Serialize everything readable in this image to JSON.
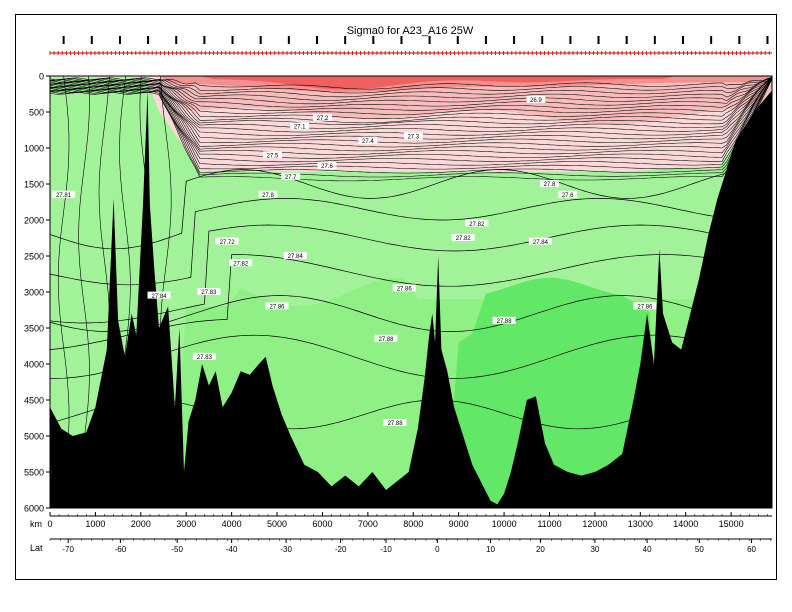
{
  "chart_data": {
    "type": "heatmap",
    "title": "Sigma0 for A23_A16 25W",
    "xlabel": "km",
    "ylabel": "",
    "x_range": [
      0,
      15900
    ],
    "y_range": [
      0,
      6000
    ],
    "y_inverted": true,
    "x_ticks": [
      0,
      1000,
      2000,
      3000,
      4000,
      5000,
      6000,
      7000,
      8000,
      9000,
      10000,
      11000,
      12000,
      13000,
      14000,
      15000
    ],
    "y_ticks": [
      0,
      500,
      1000,
      1500,
      2000,
      2500,
      3000,
      3500,
      4000,
      4500,
      5000,
      5500,
      6000
    ],
    "lat_label": "Lat",
    "lat_ticks": [
      {
        "km": 400,
        "label": "-70"
      },
      {
        "km": 1550,
        "label": "-60"
      },
      {
        "km": 2800,
        "label": "-50"
      },
      {
        "km": 4000,
        "label": "-40"
      },
      {
        "km": 5200,
        "label": "-30"
      },
      {
        "km": 6400,
        "label": "-20"
      },
      {
        "km": 7400,
        "label": "-10"
      },
      {
        "km": 8530,
        "label": "0"
      },
      {
        "km": 9700,
        "label": "10"
      },
      {
        "km": 10800,
        "label": "20"
      },
      {
        "km": 12000,
        "label": "30"
      },
      {
        "km": 13150,
        "label": "40"
      },
      {
        "km": 14300,
        "label": "50"
      },
      {
        "km": 15450,
        "label": "60"
      }
    ],
    "bottom_topography_m": [
      [
        0,
        4600
      ],
      [
        250,
        4900
      ],
      [
        500,
        5000
      ],
      [
        800,
        4950
      ],
      [
        1000,
        4600
      ],
      [
        1250,
        3800
      ],
      [
        1400,
        1700
      ],
      [
        1500,
        3400
      ],
      [
        1650,
        3900
      ],
      [
        1800,
        3300
      ],
      [
        1900,
        3600
      ],
      [
        2050,
        1750
      ],
      [
        2150,
        200
      ],
      [
        2200,
        1800
      ],
      [
        2300,
        2700
      ],
      [
        2400,
        3500
      ],
      [
        2600,
        3200
      ],
      [
        2750,
        4600
      ],
      [
        2850,
        3500
      ],
      [
        2950,
        5500
      ],
      [
        3050,
        4800
      ],
      [
        3200,
        4500
      ],
      [
        3350,
        4000
      ],
      [
        3500,
        4300
      ],
      [
        3650,
        4100
      ],
      [
        3800,
        4600
      ],
      [
        4000,
        4400
      ],
      [
        4200,
        4100
      ],
      [
        4400,
        4150
      ],
      [
        4600,
        4000
      ],
      [
        4750,
        3900
      ],
      [
        4900,
        4300
      ],
      [
        5100,
        4700
      ],
      [
        5300,
        5000
      ],
      [
        5600,
        5400
      ],
      [
        5900,
        5500
      ],
      [
        6200,
        5700
      ],
      [
        6500,
        5550
      ],
      [
        6800,
        5700
      ],
      [
        7100,
        5500
      ],
      [
        7400,
        5750
      ],
      [
        7700,
        5600
      ],
      [
        7900,
        5500
      ],
      [
        8100,
        4900
      ],
      [
        8250,
        4200
      ],
      [
        8350,
        3600
      ],
      [
        8420,
        3300
      ],
      [
        8480,
        3700
      ],
      [
        8550,
        2500
      ],
      [
        8620,
        3800
      ],
      [
        8750,
        4100
      ],
      [
        8900,
        4600
      ],
      [
        9100,
        5000
      ],
      [
        9300,
        5400
      ],
      [
        9500,
        5650
      ],
      [
        9700,
        5900
      ],
      [
        9850,
        5950
      ],
      [
        10000,
        5800
      ],
      [
        10150,
        5500
      ],
      [
        10300,
        5100
      ],
      [
        10500,
        4500
      ],
      [
        10700,
        4450
      ],
      [
        10900,
        5100
      ],
      [
        11100,
        5400
      ],
      [
        11400,
        5500
      ],
      [
        11700,
        5550
      ],
      [
        12000,
        5500
      ],
      [
        12300,
        5400
      ],
      [
        12600,
        5250
      ],
      [
        12850,
        4500
      ],
      [
        13000,
        4000
      ],
      [
        13150,
        3300
      ],
      [
        13300,
        4000
      ],
      [
        13420,
        2400
      ],
      [
        13500,
        3300
      ],
      [
        13700,
        3700
      ],
      [
        13900,
        3800
      ],
      [
        14100,
        3300
      ],
      [
        14300,
        2800
      ],
      [
        14500,
        2200
      ],
      [
        14700,
        1700
      ],
      [
        14900,
        1300
      ],
      [
        15100,
        900
      ],
      [
        15300,
        700
      ],
      [
        15500,
        500
      ],
      [
        15700,
        350
      ],
      [
        15900,
        200
      ]
    ],
    "isopycnal_labels": [
      {
        "label": "27.1",
        "km": 5500,
        "depth": 700
      },
      {
        "label": "27.2",
        "km": 6000,
        "depth": 580
      },
      {
        "label": "27.3",
        "km": 8000,
        "depth": 840
      },
      {
        "label": "27.4",
        "km": 7000,
        "depth": 900
      },
      {
        "label": "27.5",
        "km": 4900,
        "depth": 1100
      },
      {
        "label": "27.6",
        "km": 6100,
        "depth": 1250
      },
      {
        "label": "27.7",
        "km": 5300,
        "depth": 1400
      },
      {
        "label": "27.8",
        "km": 11000,
        "depth": 1500
      },
      {
        "label": "27.82",
        "km": 9400,
        "depth": 2050
      },
      {
        "label": "27.84",
        "km": 5400,
        "depth": 2500
      },
      {
        "label": "27.84",
        "km": 10800,
        "depth": 2300
      },
      {
        "label": "27.86",
        "km": 5000,
        "depth": 3200
      },
      {
        "label": "27.86",
        "km": 7800,
        "depth": 2950
      },
      {
        "label": "27.88",
        "km": 10000,
        "depth": 3400
      },
      {
        "label": "27.88",
        "km": 7600,
        "depth": 4820
      },
      {
        "label": "27.83",
        "km": 3500,
        "depth": 3000
      },
      {
        "label": "27.86",
        "km": 13100,
        "depth": 3200
      },
      {
        "label": "27.88",
        "km": 7400,
        "depth": 3650
      },
      {
        "label": "27.81",
        "km": 300,
        "depth": 1650
      },
      {
        "label": "27.84",
        "km": 2400,
        "depth": 3050
      },
      {
        "label": "27.83",
        "km": 3400,
        "depth": 3900
      },
      {
        "label": "27.72",
        "km": 3900,
        "depth": 2300
      },
      {
        "label": "27.82",
        "km": 4200,
        "depth": 2600
      },
      {
        "label": "27.82",
        "km": 9100,
        "depth": 2250
      },
      {
        "label": "27.8",
        "km": 4800,
        "depth": 1650
      },
      {
        "label": "27.6",
        "km": 11400,
        "depth": 1650
      },
      {
        "label": "26.9",
        "km": 10700,
        "depth": 330
      }
    ],
    "fill_colors": {
      "red_dark": "#e03030",
      "red": "#f06060",
      "red_light": "#f39090",
      "pink": "#f7bcbc",
      "pink_light": "#fbd9d9",
      "green_light": "#a2f29a",
      "green_mid": "#8ef085",
      "green_deep": "#74ee72",
      "green_bright": "#63e766",
      "topo": "#000000"
    }
  }
}
